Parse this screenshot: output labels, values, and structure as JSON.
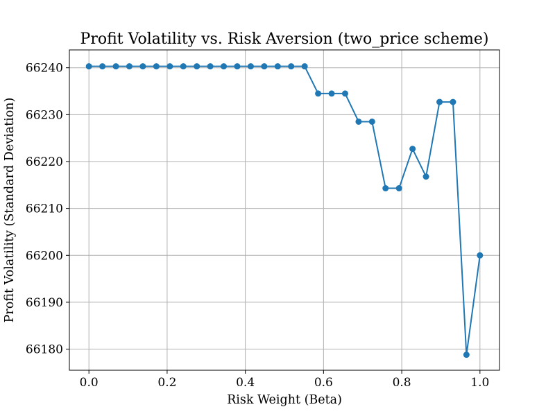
{
  "chart_data": {
    "type": "line",
    "title": "Profit Volatility vs. Risk Aversion (two_price scheme)",
    "xlabel": "Risk Weight (Beta)",
    "ylabel": "Profit Volatility (Standard Deviation)",
    "xlim": [
      -0.05,
      1.05
    ],
    "ylim": [
      66175.5,
      66243.8
    ],
    "grid": true,
    "x_ticks": [
      0.0,
      0.2,
      0.4,
      0.6,
      0.8,
      1.0
    ],
    "x_tick_labels": [
      "0.0",
      "0.2",
      "0.4",
      "0.6",
      "0.8",
      "1.0"
    ],
    "y_ticks": [
      66180,
      66190,
      66200,
      66210,
      66220,
      66230,
      66240
    ],
    "y_tick_labels": [
      "66180",
      "66190",
      "66200",
      "66210",
      "66220",
      "66230",
      "66240"
    ],
    "colors": {
      "series": "#1f77b4",
      "grid": "#b0b0b0"
    },
    "x": [
      0.0,
      0.0345,
      0.069,
      0.1034,
      0.1379,
      0.1724,
      0.2069,
      0.2414,
      0.2759,
      0.3103,
      0.3448,
      0.3793,
      0.4138,
      0.4483,
      0.4828,
      0.5172,
      0.5517,
      0.5862,
      0.6207,
      0.6552,
      0.6897,
      0.7241,
      0.7586,
      0.7931,
      0.8276,
      0.8621,
      0.8966,
      0.931,
      0.9655,
      1.0
    ],
    "series": [
      {
        "values": [
          66240.3,
          66240.3,
          66240.3,
          66240.3,
          66240.3,
          66240.3,
          66240.3,
          66240.3,
          66240.3,
          66240.3,
          66240.3,
          66240.3,
          66240.3,
          66240.3,
          66240.3,
          66240.3,
          66240.3,
          66234.5,
          66234.5,
          66234.5,
          66228.5,
          66228.5,
          66214.3,
          66214.3,
          66222.7,
          66216.8,
          66232.7,
          66232.7,
          66178.8,
          66200.0
        ]
      }
    ]
  }
}
